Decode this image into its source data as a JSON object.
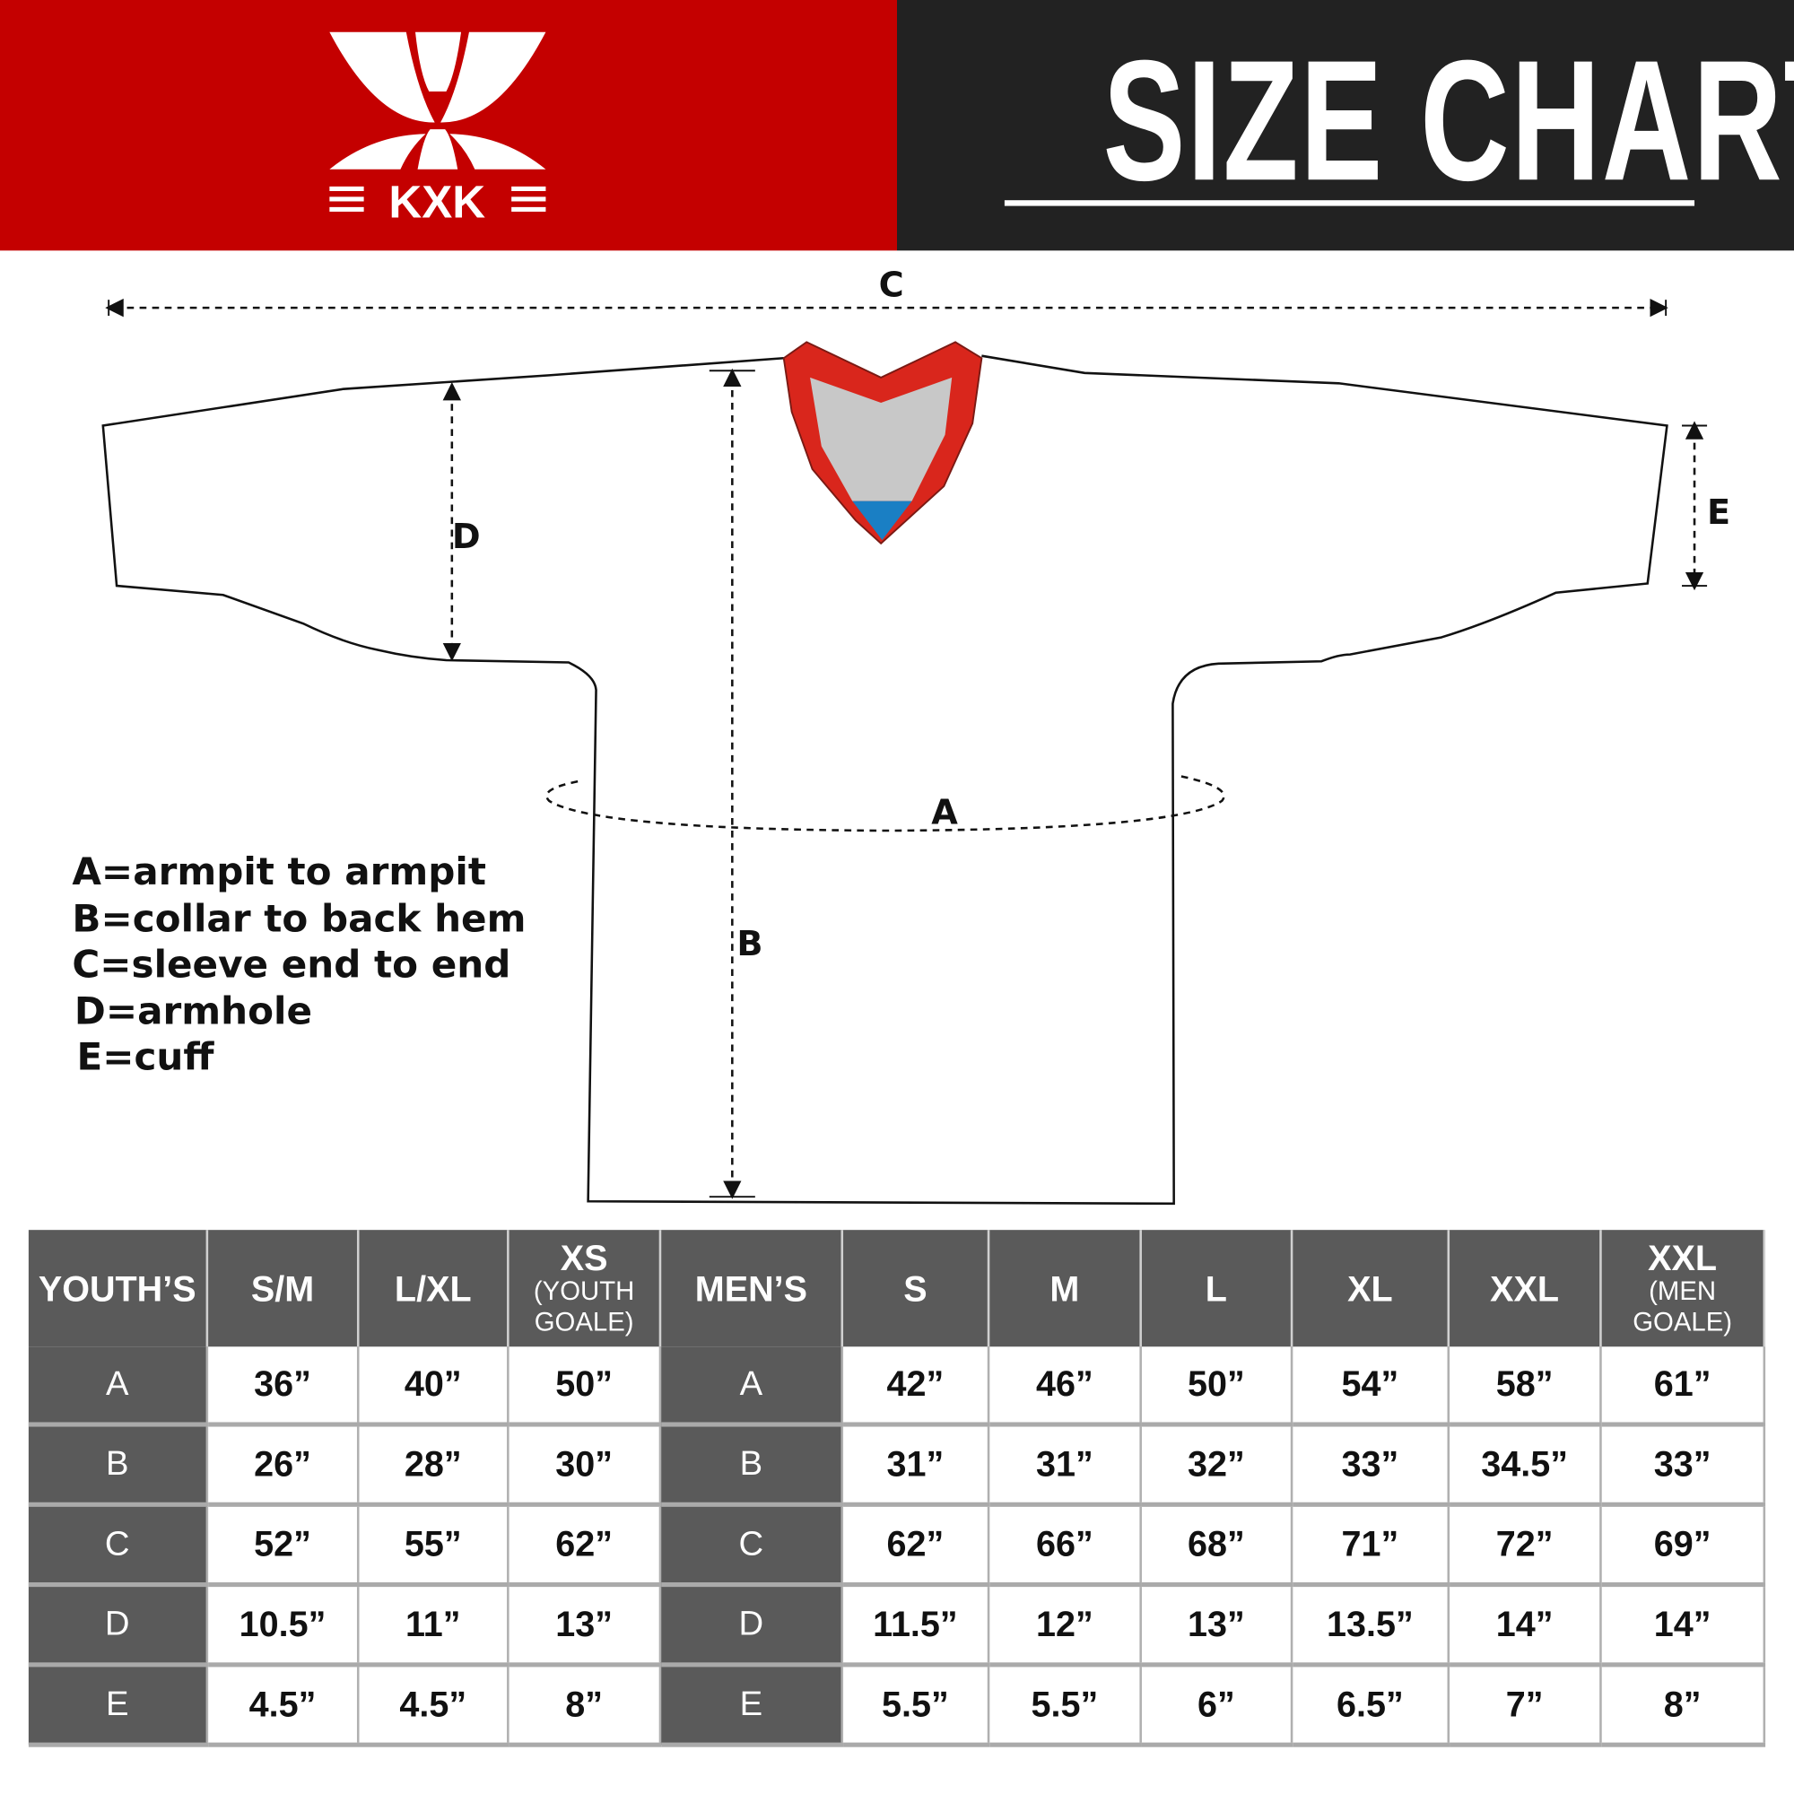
{
  "header": {
    "brand": "KXK",
    "title": "SIZE CHART",
    "colors": {
      "brand_red": "#c40000",
      "dark": "#222222",
      "table_header": "#5a5a5a",
      "collar_red": "#d9261c",
      "collar_gray": "#c8c8c8",
      "collar_blue": "#1a7fc4"
    }
  },
  "diagram": {
    "labels": {
      "a": "A",
      "b": "B",
      "c": "C",
      "d": "D",
      "e": "E"
    }
  },
  "legend": [
    "A=armpit to armpit",
    "B=collar to back hem",
    "C=sleeve end to end",
    "D=armhole",
    "E=cuff"
  ],
  "table": {
    "headers": [
      {
        "main": "YOUTH’S",
        "sub": ""
      },
      {
        "main": "S/M",
        "sub": ""
      },
      {
        "main": "L/XL",
        "sub": ""
      },
      {
        "main": "XS",
        "sub": "(YOUTH GOALE)"
      },
      {
        "main": "MEN’S",
        "sub": ""
      },
      {
        "main": "S",
        "sub": ""
      },
      {
        "main": "M",
        "sub": ""
      },
      {
        "main": "L",
        "sub": ""
      },
      {
        "main": "XL",
        "sub": ""
      },
      {
        "main": "XXL",
        "sub": ""
      },
      {
        "main": "XXL",
        "sub": "(MEN GOALE)"
      }
    ],
    "rows": [
      {
        "youth_label": "A",
        "youth": [
          "36”",
          "40”",
          "50”"
        ],
        "men_label": "A",
        "men": [
          "42”",
          "46”",
          "50”",
          "54”",
          "58”",
          "61”"
        ]
      },
      {
        "youth_label": "B",
        "youth": [
          "26”",
          "28”",
          "30”"
        ],
        "men_label": "B",
        "men": [
          "31”",
          "31”",
          "32”",
          "33”",
          "34.5”",
          "33”"
        ]
      },
      {
        "youth_label": "C",
        "youth": [
          "52”",
          "55”",
          "62”"
        ],
        "men_label": "C",
        "men": [
          "62”",
          "66”",
          "68”",
          "71”",
          "72”",
          "69”"
        ]
      },
      {
        "youth_label": "D",
        "youth": [
          "10.5”",
          "11”",
          "13”"
        ],
        "men_label": "D",
        "men": [
          "11.5”",
          "12”",
          "13”",
          "13.5”",
          "14”",
          "14”"
        ]
      },
      {
        "youth_label": "E",
        "youth": [
          "4.5”",
          "4.5”",
          "8”"
        ],
        "men_label": "E",
        "men": [
          "5.5”",
          "5.5”",
          "6”",
          "6.5”",
          "7”",
          "8”"
        ]
      }
    ]
  }
}
